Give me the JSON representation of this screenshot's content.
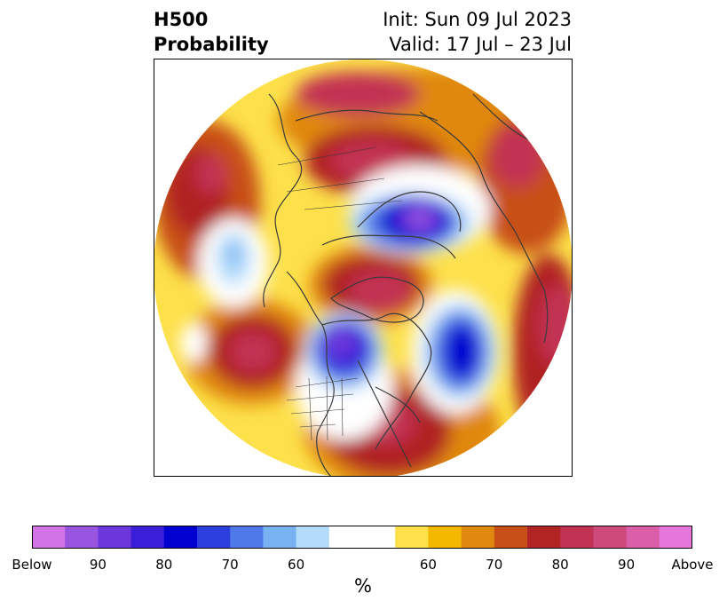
{
  "header": {
    "variable": "H500",
    "product": "Probability",
    "init": "Init: Sun 09 Jul 2023",
    "valid": "Valid: 17 Jul – 23 Jul"
  },
  "map": {
    "projection": "north-polar-stereographic"
  },
  "colorbar": {
    "unit": "%",
    "colors": [
      "#d373e8",
      "#9a55e0",
      "#6b37dc",
      "#3b1fd8",
      "#0000d0",
      "#2a3fdc",
      "#4f78e8",
      "#78b2f2",
      "#b3dcfa",
      "#ffffff",
      "#ffffff",
      "#fde04a",
      "#f5b800",
      "#e08810",
      "#c85018",
      "#b02424",
      "#c23252",
      "#cd4a7a",
      "#da5ea8",
      "#e776dc"
    ],
    "tick_labels": [
      "Below",
      "90",
      "80",
      "70",
      "60",
      "60",
      "70",
      "80",
      "90",
      "Above"
    ]
  },
  "legend": {
    "below_color": "#6b37dc",
    "above_color": "#b02424"
  }
}
